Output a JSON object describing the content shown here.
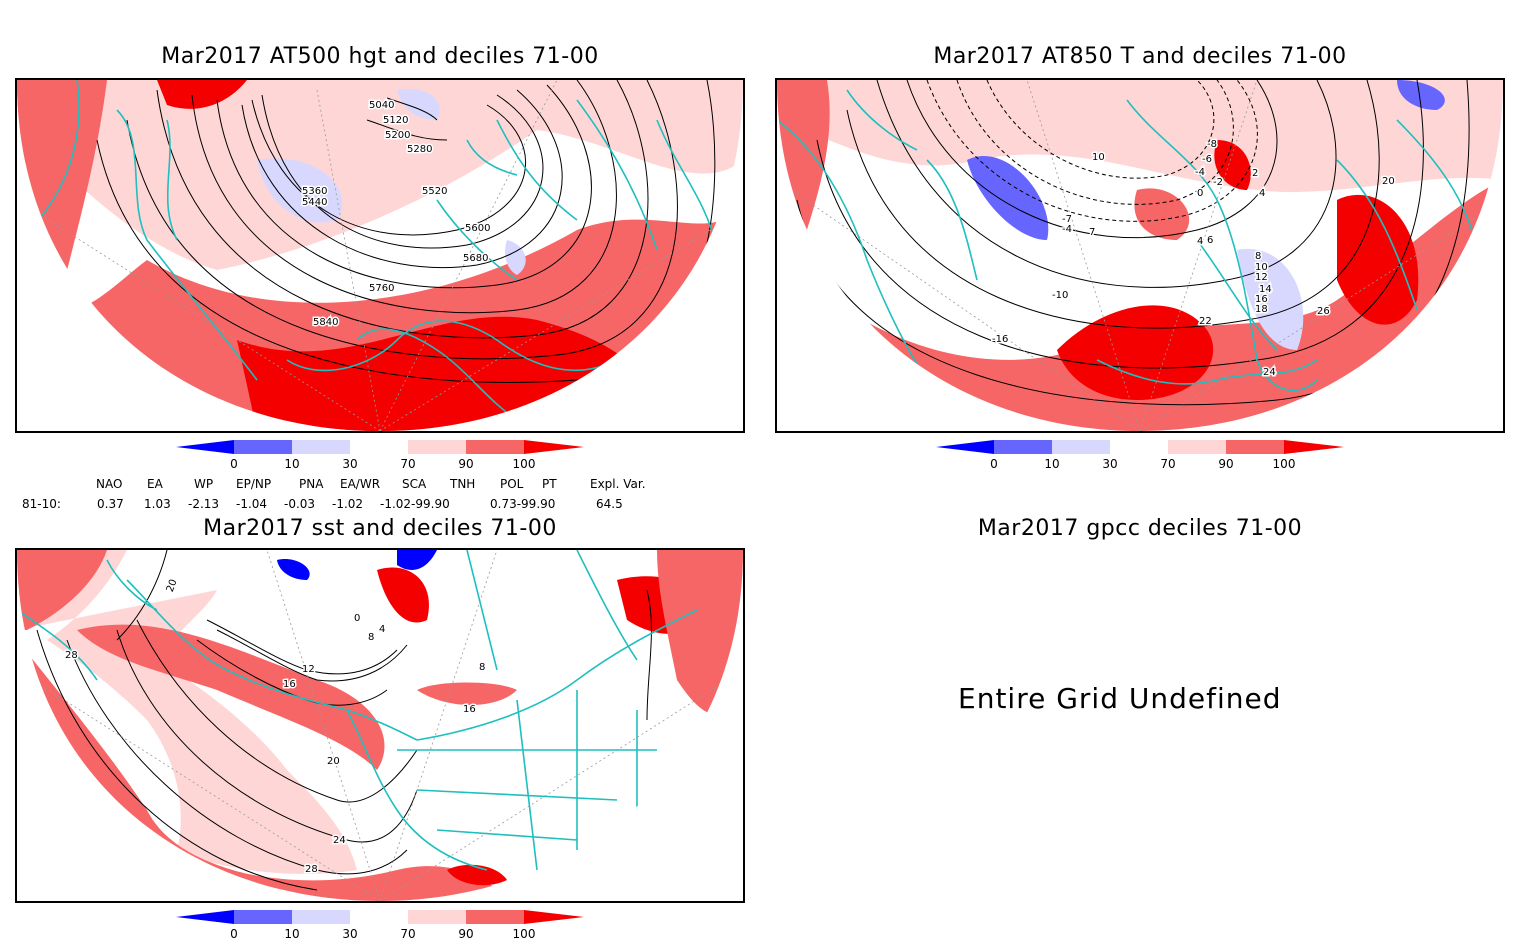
{
  "panels": {
    "hgt": {
      "title": "Mar2017 AT500 hgt and deciles 71-00",
      "contour_labels": [
        "5040",
        "5120",
        "5200",
        "5280",
        "5360",
        "5440",
        "5520",
        "5600",
        "5680",
        "5760",
        "5840"
      ]
    },
    "t850": {
      "title": "Mar2017 AT850 T and deciles 71-00",
      "contour_labels": [
        "-8",
        "-6",
        "-4",
        "-2",
        "0",
        "2",
        "4",
        "6",
        "8",
        "10",
        "12",
        "14",
        "16",
        "18",
        "20",
        "22",
        "24",
        "26",
        "-16",
        "-10",
        "-7",
        "-4",
        "4",
        "7",
        "10"
      ]
    },
    "sst": {
      "title": "Mar2017 sst and deciles 71-00",
      "contour_labels": [
        "20",
        "28",
        "0",
        "4",
        "8",
        "12",
        "16",
        "20",
        "24",
        "28",
        "16",
        "8"
      ]
    },
    "gpcc": {
      "title": "Mar2017 gpcc deciles 71-00",
      "message": "Entire Grid Undefined"
    }
  },
  "colorbar": {
    "ticks": [
      "0",
      "10",
      "30",
      "70",
      "90",
      "100"
    ],
    "colors": [
      "#0000ff",
      "#6666ff",
      "#d8d8ff",
      "#ffffff",
      "#ffd6d6",
      "#f76666",
      "#f50000"
    ]
  },
  "indices": {
    "headers": [
      "NAO",
      "EA",
      "WP",
      "EP/NP",
      "PNA",
      "EA/WR",
      "SCA",
      "TNH",
      "POL",
      "PT",
      "Expl. Var."
    ],
    "row_label": "81-10:",
    "values": [
      "0.37",
      "1.03",
      "-2.13",
      "-1.04",
      "-0.03",
      "-1.02",
      "-1.02-99.90",
      "0.73-99.90",
      "64.5"
    ]
  },
  "colors": {
    "coast": "#1fbfbf",
    "outline": "#000000"
  }
}
